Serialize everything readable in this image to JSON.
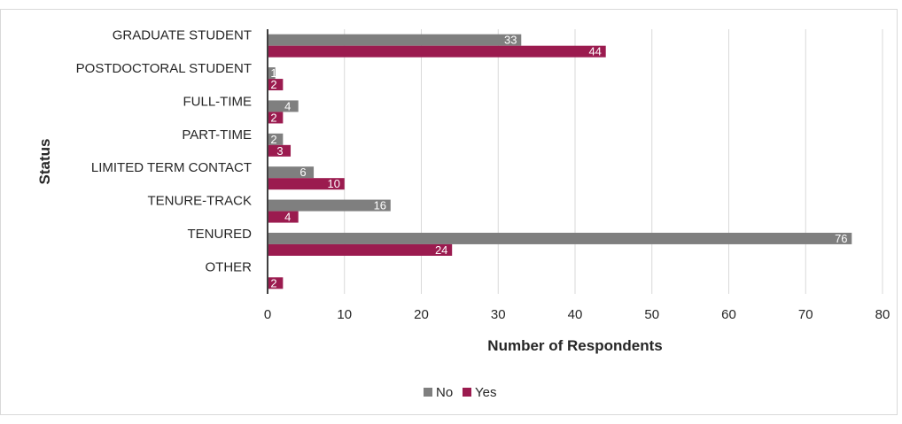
{
  "chart_data": {
    "type": "bar",
    "orientation": "horizontal",
    "title": "",
    "xlabel": "Number of Respondents",
    "ylabel": "Status",
    "categories": [
      "GRADUATE STUDENT",
      "POSTDOCTORAL STUDENT",
      "FULL-TIME",
      "PART-TIME",
      "LIMITED TERM CONTACT",
      "TENURE-TRACK",
      "TENURED",
      "OTHER"
    ],
    "series": [
      {
        "name": "No",
        "color": "#7f7f7f",
        "values": [
          33,
          1,
          4,
          2,
          6,
          16,
          76,
          null
        ]
      },
      {
        "name": "Yes",
        "color": "#9b1b4f",
        "values": [
          44,
          2,
          2,
          3,
          10,
          4,
          24,
          2
        ]
      }
    ],
    "xlim": [
      0,
      80
    ],
    "xticks": [
      0,
      10,
      20,
      30,
      40,
      50,
      60,
      70,
      80
    ],
    "grid": "vertical",
    "legend_position": "bottom"
  }
}
